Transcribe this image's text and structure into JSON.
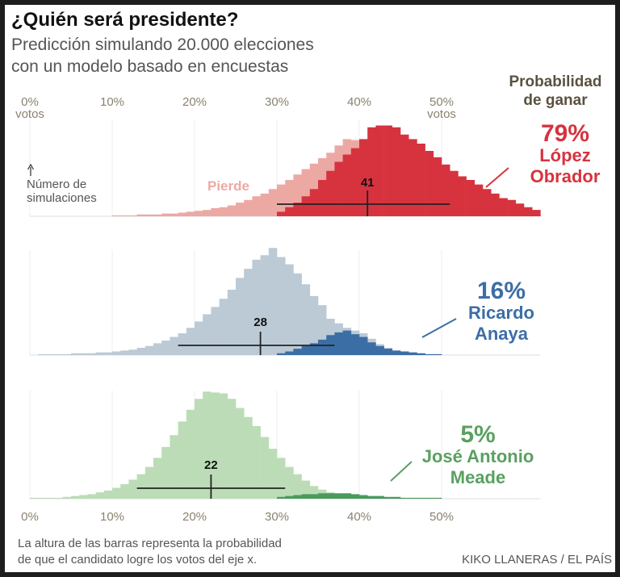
{
  "title": "¿Quién será presidente?",
  "subtitle": [
    "Predicción simulando 20.000 elecciones",
    "con un modelo basado en encuestas"
  ],
  "prob_header": [
    "Probabilidad",
    "de ganar"
  ],
  "x_unit": "votos",
  "annotations": {
    "lose": "Pierde",
    "y_label": [
      "Número de",
      "simulaciones"
    ]
  },
  "footnote": [
    "La altura de las barras representa la probabilidad",
    "de que el candidato logre los votos del eje x."
  ],
  "credit": "KIKO LLANERAS / EL PAÍS",
  "chart_data": [
    {
      "type": "histogram",
      "candidate": [
        "López",
        "Obrador"
      ],
      "probability": 79,
      "probability_label": "79%",
      "text_color": "#d6333f",
      "median": 41,
      "interval": [
        30,
        51
      ],
      "xlim": [
        0,
        62
      ],
      "ylim": [
        0,
        120
      ],
      "xticks": [
        {
          "value": 0,
          "label": "0%"
        },
        {
          "value": 10,
          "label": "10%"
        },
        {
          "value": 20,
          "label": "20%"
        },
        {
          "value": 30,
          "label": "30%"
        },
        {
          "value": 40,
          "label": "40%"
        },
        {
          "value": 50,
          "label": "50%"
        }
      ],
      "bins": [
        0,
        1,
        2,
        3,
        4,
        5,
        6,
        7,
        8,
        9,
        10,
        11,
        12,
        13,
        14,
        15,
        16,
        17,
        18,
        19,
        20,
        21,
        22,
        23,
        24,
        25,
        26,
        27,
        28,
        29,
        30,
        31,
        32,
        33,
        34,
        35,
        36,
        37,
        38,
        39,
        40,
        41,
        42,
        43,
        44,
        45,
        46,
        47,
        48,
        49,
        50,
        51,
        52,
        53,
        54,
        55,
        56,
        57,
        58,
        59,
        60,
        61,
        62
      ],
      "series": [
        {
          "color": "#eca9a4",
          "values": [
            0,
            0,
            0,
            0,
            0,
            0,
            0,
            0,
            0,
            0,
            1,
            1,
            1,
            2,
            2,
            2,
            3,
            3,
            4,
            5,
            6,
            7,
            9,
            10,
            12,
            15,
            18,
            22,
            25,
            30,
            35,
            40,
            46,
            52,
            58,
            64,
            70,
            78,
            85,
            84,
            0,
            0,
            0,
            0,
            0,
            0,
            0,
            0,
            0,
            0,
            0,
            0,
            0,
            0,
            0,
            0,
            0,
            0,
            0,
            0,
            0,
            0
          ]
        },
        {
          "color": "#d6333f",
          "values": [
            0,
            0,
            0,
            0,
            0,
            0,
            0,
            0,
            0,
            0,
            0,
            0,
            0,
            0,
            0,
            0,
            0,
            0,
            0,
            0,
            0,
            0,
            0,
            0,
            0,
            0,
            0,
            0,
            0,
            0,
            5,
            10,
            15,
            22,
            30,
            40,
            50,
            60,
            68,
            75,
            85,
            98,
            100,
            100,
            98,
            90,
            85,
            80,
            72,
            65,
            57,
            50,
            44,
            40,
            35,
            30,
            25,
            20,
            18,
            14,
            10,
            7
          ]
        }
      ]
    },
    {
      "type": "histogram",
      "candidate": [
        "Ricardo",
        "Anaya"
      ],
      "probability": 16,
      "probability_label": "16%",
      "text_color": "#3c6ea6",
      "median": 28,
      "interval": [
        18,
        37
      ],
      "xlim": [
        0,
        62
      ],
      "ylim": [
        0,
        120
      ],
      "xticks": [
        {
          "value": 0,
          "label": "0%"
        },
        {
          "value": 10,
          "label": "10%"
        },
        {
          "value": 20,
          "label": "20%"
        },
        {
          "value": 30,
          "label": "30%"
        },
        {
          "value": 40,
          "label": "40%"
        },
        {
          "value": 50,
          "label": "50%"
        }
      ],
      "bins": [
        0,
        1,
        2,
        3,
        4,
        5,
        6,
        7,
        8,
        9,
        10,
        11,
        12,
        13,
        14,
        15,
        16,
        17,
        18,
        19,
        20,
        21,
        22,
        23,
        24,
        25,
        26,
        27,
        28,
        29,
        30,
        31,
        32,
        33,
        34,
        35,
        36,
        37,
        38,
        39,
        40,
        41,
        42,
        43,
        44,
        45,
        46,
        47,
        48,
        49,
        50,
        51,
        52,
        53,
        54,
        55,
        56,
        57,
        58,
        59,
        60,
        61,
        62
      ],
      "series": [
        {
          "color": "#bccad6",
          "values": [
            0,
            1,
            1,
            1,
            1,
            2,
            2,
            2,
            3,
            3,
            4,
            5,
            6,
            8,
            10,
            13,
            16,
            20,
            24,
            30,
            37,
            45,
            53,
            62,
            72,
            85,
            95,
            105,
            110,
            118,
            108,
            100,
            90,
            78,
            65,
            55,
            40,
            35,
            30,
            27,
            24,
            18,
            12,
            8,
            5,
            2,
            1,
            1,
            1,
            0,
            0,
            0,
            0,
            0,
            0,
            0,
            0,
            0,
            0,
            0,
            0,
            0
          ]
        },
        {
          "color": "#3c6ea6",
          "values": [
            0,
            0,
            0,
            0,
            0,
            0,
            0,
            0,
            0,
            0,
            0,
            0,
            0,
            0,
            0,
            0,
            0,
            0,
            0,
            0,
            0,
            0,
            0,
            0,
            0,
            0,
            0,
            0,
            0,
            0,
            2,
            4,
            7,
            10,
            13,
            17,
            22,
            25,
            27,
            23,
            20,
            14,
            10,
            7,
            5,
            4,
            3,
            2,
            1,
            1,
            0,
            0,
            0,
            0,
            0,
            0,
            0,
            0,
            0,
            0,
            0,
            0
          ]
        }
      ]
    },
    {
      "type": "histogram",
      "candidate": [
        "José Antonio",
        "Meade"
      ],
      "probability": 5,
      "probability_label": "5%",
      "text_color": "#5aa060",
      "median": 22,
      "interval": [
        13,
        31
      ],
      "xlim": [
        0,
        62
      ],
      "ylim": [
        0,
        120
      ],
      "xticks": [
        {
          "value": 0,
          "label": "0%"
        },
        {
          "value": 10,
          "label": "10%"
        },
        {
          "value": 20,
          "label": "20%"
        },
        {
          "value": 30,
          "label": "30%"
        },
        {
          "value": 40,
          "label": "40%"
        },
        {
          "value": 50,
          "label": "50%"
        }
      ],
      "bins": [
        0,
        1,
        2,
        3,
        4,
        5,
        6,
        7,
        8,
        9,
        10,
        11,
        12,
        13,
        14,
        15,
        16,
        17,
        18,
        19,
        20,
        21,
        22,
        23,
        24,
        25,
        26,
        27,
        28,
        29,
        30,
        31,
        32,
        33,
        34,
        35,
        36,
        37,
        38,
        39,
        40,
        41,
        42,
        43,
        44,
        45,
        46,
        47,
        48,
        49,
        50,
        51,
        52,
        53,
        54,
        55,
        56,
        57,
        58,
        59,
        60,
        61,
        62
      ],
      "series": [
        {
          "color": "#bcdcb7",
          "values": [
            1,
            1,
            1,
            1,
            2,
            3,
            4,
            5,
            7,
            9,
            12,
            16,
            21,
            27,
            35,
            45,
            57,
            70,
            85,
            98,
            110,
            118,
            117,
            116,
            110,
            100,
            90,
            80,
            68,
            55,
            45,
            35,
            27,
            20,
            14,
            10,
            7,
            5,
            3,
            2,
            1,
            1,
            1,
            1,
            1,
            0,
            0,
            0,
            0,
            0,
            0,
            0,
            0,
            0,
            0,
            0,
            0,
            0,
            0,
            0,
            0,
            0
          ]
        },
        {
          "color": "#4a9a5e",
          "values": [
            0,
            0,
            0,
            0,
            0,
            0,
            0,
            0,
            0,
            0,
            0,
            0,
            0,
            0,
            0,
            0,
            0,
            0,
            0,
            0,
            0,
            0,
            0,
            0,
            0,
            0,
            0,
            0,
            0,
            0,
            2,
            3,
            4,
            5,
            5,
            6,
            6,
            6,
            6,
            5,
            4,
            3,
            3,
            2,
            2,
            1,
            1,
            1,
            1,
            1,
            0,
            0,
            0,
            0,
            0,
            0,
            0,
            0,
            0,
            0,
            0,
            0
          ]
        }
      ]
    }
  ]
}
